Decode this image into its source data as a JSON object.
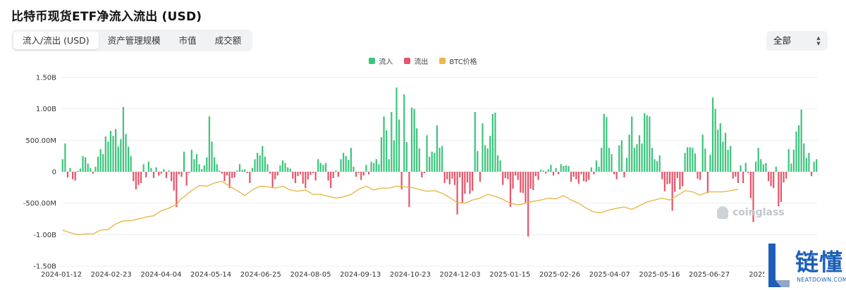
{
  "header": {
    "title": "比特币现货ETF净流入流出 (USD)"
  },
  "tabs": [
    {
      "label": "流入/流出 (USD)",
      "active": true
    },
    {
      "label": "资产管理规模",
      "active": false
    },
    {
      "label": "市值",
      "active": false
    },
    {
      "label": "成交额",
      "active": false
    }
  ],
  "range_select": {
    "value": "全部"
  },
  "legend": [
    {
      "label": "流入",
      "color": "#3cc47c"
    },
    {
      "label": "流出",
      "color": "#e5566a"
    },
    {
      "label": "BTC价格",
      "color": "#e8b84a"
    }
  ],
  "watermark": {
    "text": "coinglass"
  },
  "logo": {
    "text": "链懂",
    "subtext": "NEATDOWN.COM"
  },
  "chart_data": {
    "type": "bar",
    "ylim": [
      -1500000000,
      1500000000
    ],
    "y_ticks": [
      {
        "value": 1500000000,
        "label": "1.50B"
      },
      {
        "value": 1000000000,
        "label": "1.00B"
      },
      {
        "value": 500000000,
        "label": "500.00M"
      },
      {
        "value": 0,
        "label": "0"
      },
      {
        "value": -500000000,
        "label": "-500.00M"
      },
      {
        "value": -1000000000,
        "label": "-1.00B"
      },
      {
        "value": -1500000000,
        "label": "-1.50B"
      }
    ],
    "x_ticks": [
      "2024-01-12",
      "2024-02-23",
      "2024-04-04",
      "2024-05-14",
      "2024-06-25",
      "2024-08-05",
      "2024-09-13",
      "2024-10-23",
      "2024-12-03",
      "2025-01-15",
      "2025-02-26",
      "2025-04-07",
      "2025-05-16",
      "2025-06-27",
      "2025-"
    ],
    "grid": "horizontal",
    "legend_position": "top-center",
    "series": [
      {
        "name": "流入/流出",
        "kind": "bar",
        "positive_color": "#3cc47c",
        "negative_color": "#e5566a",
        "values": [
          200000000,
          450000000,
          -90000000,
          60000000,
          -120000000,
          -140000000,
          15000000,
          50000000,
          250000000,
          230000000,
          130000000,
          60000000,
          -30000000,
          80000000,
          240000000,
          360000000,
          280000000,
          560000000,
          480000000,
          650000000,
          570000000,
          680000000,
          400000000,
          520000000,
          1030000000,
          600000000,
          400000000,
          250000000,
          -150000000,
          -280000000,
          -210000000,
          -180000000,
          120000000,
          -90000000,
          160000000,
          60000000,
          -100000000,
          70000000,
          -60000000,
          -30000000,
          40000000,
          -100000000,
          20000000,
          -150000000,
          -300000000,
          -560000000,
          -40000000,
          -80000000,
          320000000,
          -220000000,
          -20000000,
          350000000,
          200000000,
          280000000,
          120000000,
          40000000,
          100000000,
          230000000,
          880000000,
          480000000,
          230000000,
          120000000,
          20000000,
          -30000000,
          -150000000,
          -60000000,
          -260000000,
          -100000000,
          -90000000,
          20000000,
          120000000,
          30000000,
          40000000,
          -20000000,
          -180000000,
          60000000,
          200000000,
          300000000,
          260000000,
          410000000,
          240000000,
          120000000,
          -30000000,
          -260000000,
          -120000000,
          -60000000,
          100000000,
          180000000,
          140000000,
          70000000,
          50000000,
          -110000000,
          -180000000,
          -70000000,
          -40000000,
          -190000000,
          -260000000,
          -120000000,
          -50000000,
          -20000000,
          -140000000,
          200000000,
          140000000,
          110000000,
          140000000,
          -140000000,
          -260000000,
          -100000000,
          20000000,
          -80000000,
          200000000,
          300000000,
          250000000,
          190000000,
          380000000,
          80000000,
          -80000000,
          -20000000,
          -130000000,
          -60000000,
          110000000,
          -40000000,
          160000000,
          140000000,
          200000000,
          120000000,
          550000000,
          880000000,
          660000000,
          200000000,
          950000000,
          500000000,
          1340000000,
          830000000,
          -280000000,
          1230000000,
          470000000,
          -560000000,
          1020000000,
          1000000000,
          690000000,
          370000000,
          -90000000,
          -20000000,
          580000000,
          240000000,
          320000000,
          300000000,
          740000000,
          380000000,
          410000000,
          -180000000,
          -120000000,
          -200000000,
          -110000000,
          -210000000,
          -680000000,
          -90000000,
          -500000000,
          -350000000,
          -170000000,
          -350000000,
          -300000000,
          950000000,
          330000000,
          -160000000,
          770000000,
          420000000,
          370000000,
          570000000,
          920000000,
          940000000,
          260000000,
          180000000,
          -210000000,
          -100000000,
          -120000000,
          -560000000,
          -270000000,
          -60000000,
          -130000000,
          -330000000,
          -340000000,
          -490000000,
          -1030000000,
          -270000000,
          -290000000,
          -70000000,
          -130000000,
          30000000,
          20000000,
          -30000000,
          40000000,
          110000000,
          -60000000,
          60000000,
          -40000000,
          120000000,
          90000000,
          100000000,
          90000000,
          -160000000,
          -80000000,
          -120000000,
          -190000000,
          -40000000,
          -150000000,
          -160000000,
          -130000000,
          70000000,
          -40000000,
          180000000,
          80000000,
          380000000,
          920000000,
          870000000,
          380000000,
          280000000,
          -40000000,
          -120000000,
          420000000,
          500000000,
          -90000000,
          220000000,
          590000000,
          880000000,
          380000000,
          440000000,
          580000000,
          450000000,
          930000000,
          900000000,
          880000000,
          380000000,
          200000000,
          170000000,
          260000000,
          -120000000,
          -310000000,
          -200000000,
          -190000000,
          -620000000,
          -320000000,
          -100000000,
          -280000000,
          -230000000,
          300000000,
          390000000,
          390000000,
          380000000,
          290000000,
          -110000000,
          -130000000,
          590000000,
          370000000,
          -340000000,
          270000000,
          1180000000,
          1000000000,
          670000000,
          770000000,
          480000000,
          620000000,
          350000000,
          410000000,
          -110000000,
          -80000000,
          -180000000,
          100000000,
          -180000000,
          140000000,
          -20000000,
          -420000000,
          -800000000,
          160000000,
          380000000,
          200000000,
          120000000,
          140000000,
          -150000000,
          -230000000,
          -260000000,
          80000000,
          -550000000,
          -480000000,
          -170000000,
          -110000000,
          360000000,
          130000000,
          350000000,
          640000000,
          740000000,
          990000000,
          450000000,
          220000000,
          300000000,
          -70000000,
          160000000,
          200000000
        ]
      },
      {
        "name": "BTC价格",
        "kind": "line",
        "values": [
          [
            0,
            -930000000
          ],
          [
            3,
            -970000000
          ],
          [
            6,
            -1000000000
          ],
          [
            9,
            -990000000
          ],
          [
            12,
            -990000000
          ],
          [
            15,
            -930000000
          ],
          [
            18,
            -920000000
          ],
          [
            21,
            -830000000
          ],
          [
            24,
            -780000000
          ],
          [
            27,
            -780000000
          ],
          [
            30,
            -750000000
          ],
          [
            33,
            -720000000
          ],
          [
            36,
            -700000000
          ],
          [
            39,
            -620000000
          ],
          [
            42,
            -580000000
          ],
          [
            45,
            -520000000
          ],
          [
            47,
            -420000000
          ],
          [
            48,
            -400000000
          ],
          [
            51,
            -300000000
          ],
          [
            54,
            -220000000
          ],
          [
            57,
            -230000000
          ],
          [
            60,
            -180000000
          ],
          [
            63,
            -150000000
          ],
          [
            66,
            -230000000
          ],
          [
            69,
            -300000000
          ],
          [
            72,
            -380000000
          ],
          [
            75,
            -290000000
          ],
          [
            78,
            -230000000
          ],
          [
            81,
            -240000000
          ],
          [
            84,
            -260000000
          ],
          [
            87,
            -230000000
          ],
          [
            90,
            -290000000
          ],
          [
            93,
            -310000000
          ],
          [
            96,
            -290000000
          ],
          [
            99,
            -360000000
          ],
          [
            102,
            -360000000
          ],
          [
            105,
            -390000000
          ],
          [
            108,
            -420000000
          ],
          [
            111,
            -400000000
          ],
          [
            114,
            -360000000
          ],
          [
            117,
            -280000000
          ],
          [
            120,
            -230000000
          ],
          [
            123,
            -290000000
          ],
          [
            126,
            -260000000
          ],
          [
            129,
            -260000000
          ],
          [
            132,
            -230000000
          ],
          [
            135,
            -240000000
          ],
          [
            138,
            -250000000
          ],
          [
            141,
            -280000000
          ],
          [
            144,
            -310000000
          ],
          [
            147,
            -300000000
          ],
          [
            150,
            -340000000
          ],
          [
            153,
            -410000000
          ],
          [
            156,
            -490000000
          ],
          [
            159,
            -500000000
          ],
          [
            162,
            -450000000
          ],
          [
            165,
            -420000000
          ],
          [
            168,
            -360000000
          ],
          [
            171,
            -390000000
          ],
          [
            174,
            -440000000
          ],
          [
            177,
            -500000000
          ],
          [
            180,
            -530000000
          ],
          [
            183,
            -500000000
          ],
          [
            186,
            -470000000
          ],
          [
            189,
            -450000000
          ],
          [
            192,
            -420000000
          ],
          [
            195,
            -430000000
          ],
          [
            198,
            -380000000
          ],
          [
            201,
            -450000000
          ],
          [
            204,
            -500000000
          ],
          [
            207,
            -580000000
          ],
          [
            210,
            -640000000
          ],
          [
            213,
            -650000000
          ],
          [
            216,
            -610000000
          ],
          [
            219,
            -580000000
          ],
          [
            222,
            -560000000
          ],
          [
            225,
            -600000000
          ],
          [
            228,
            -540000000
          ],
          [
            231,
            -480000000
          ],
          [
            234,
            -450000000
          ],
          [
            237,
            -420000000
          ],
          [
            240,
            -450000000
          ],
          [
            243,
            -380000000
          ],
          [
            246,
            -300000000
          ],
          [
            249,
            -320000000
          ],
          [
            252,
            -370000000
          ],
          [
            255,
            -320000000
          ],
          [
            258,
            -320000000
          ],
          [
            261,
            -320000000
          ],
          [
            264,
            -300000000
          ],
          [
            267,
            -280000000
          ]
        ]
      }
    ]
  }
}
